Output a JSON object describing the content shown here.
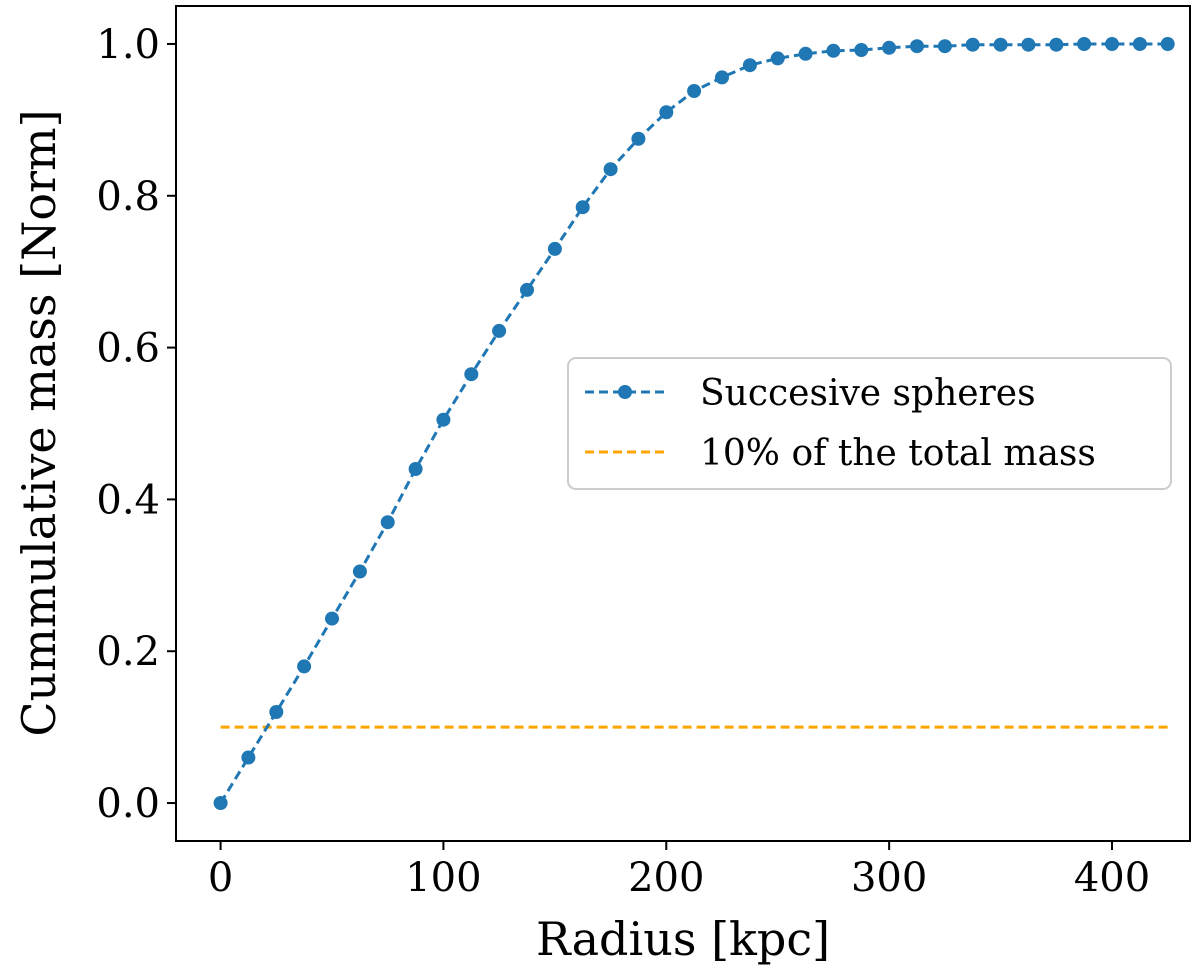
{
  "chart_data": {
    "type": "line",
    "xlabel": "Radius [kpc]",
    "ylabel": "Cummulative mass [Norm]",
    "xlim": [
      -20,
      435
    ],
    "ylim": [
      -0.05,
      1.05
    ],
    "xticks": [
      0,
      100,
      200,
      300,
      400
    ],
    "xtick_labels": [
      "0",
      "100",
      "200",
      "300",
      "400"
    ],
    "yticks": [
      0.0,
      0.2,
      0.4,
      0.6,
      0.8,
      1.0
    ],
    "ytick_labels": [
      "0.0",
      "0.2",
      "0.4",
      "0.6",
      "0.8",
      "1.0"
    ],
    "grid": false,
    "legend_position": "center-right",
    "series": [
      {
        "name": "Succesive spheres",
        "color": "#1f77b4",
        "linestyle": "dashed",
        "marker": "circle",
        "x": [
          0,
          12.5,
          25,
          37.5,
          50,
          62.5,
          75,
          87.5,
          100,
          112.5,
          125,
          137.5,
          150,
          162.5,
          175,
          187.5,
          200,
          212.5,
          225,
          237.5,
          250,
          262.5,
          275,
          287.5,
          300,
          312.5,
          325,
          337.5,
          350,
          362.5,
          375,
          387.5,
          400,
          412.5,
          425
        ],
        "y": [
          0.0,
          0.06,
          0.12,
          0.18,
          0.243,
          0.305,
          0.37,
          0.44,
          0.505,
          0.565,
          0.622,
          0.676,
          0.73,
          0.785,
          0.835,
          0.875,
          0.91,
          0.938,
          0.956,
          0.972,
          0.981,
          0.987,
          0.991,
          0.992,
          0.995,
          0.997,
          0.997,
          0.999,
          0.999,
          0.999,
          0.999,
          1.0,
          1.0,
          1.0,
          1.0
        ]
      },
      {
        "name": "10% of the total mass",
        "color": "#ffa500",
        "linestyle": "dashed",
        "marker": "none",
        "x": [
          0,
          425
        ],
        "y": [
          0.1,
          0.1
        ]
      }
    ]
  }
}
